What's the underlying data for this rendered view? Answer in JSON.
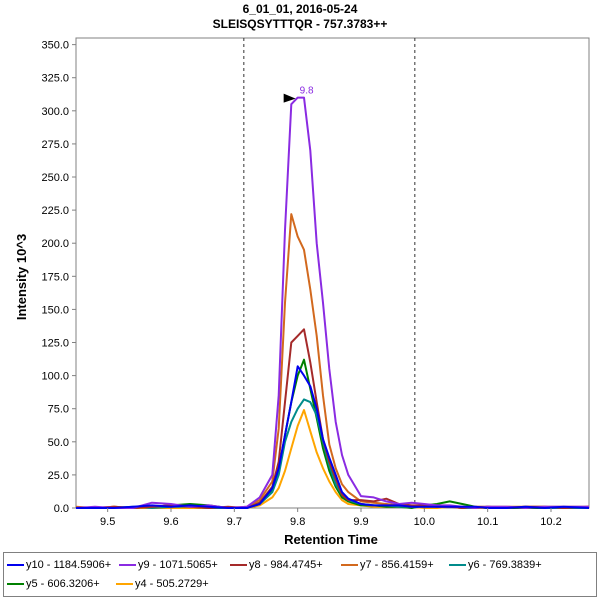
{
  "header": {
    "line1": "6_01_01, 2016-05-24",
    "line2": "SLEISQSYTTTQR - 757.3783++"
  },
  "chart_data": {
    "type": "line",
    "title": "6_01_01, 2016-05-24",
    "subtitle": "SLEISQSYTTTQR - 757.3783++",
    "xlabel": "Retention Time",
    "ylabel": "Intensity 10^3",
    "xlim": [
      9.45,
      10.26
    ],
    "ylim": [
      0,
      355
    ],
    "x_ticks": [
      9.5,
      9.6,
      9.7,
      9.8,
      9.9,
      10.0,
      10.1,
      10.2
    ],
    "x_tick_labels": [
      "9.5",
      "9.6",
      "9.7",
      "9.8",
      "9.9",
      "10.0",
      "10.1",
      "10.2"
    ],
    "y_ticks": [
      0,
      25,
      50,
      75,
      100,
      125,
      150,
      175,
      200,
      225,
      250,
      275,
      300,
      325,
      350
    ],
    "y_tick_labels": [
      "0.0",
      "25.0",
      "50.0",
      "75.0",
      "100.0",
      "125.0",
      "150.0",
      "175.0",
      "200.0",
      "225.0",
      "250.0",
      "275.0",
      "300.0",
      "325.0",
      "350.0"
    ],
    "vlines": [
      9.715,
      9.985
    ],
    "peak_annotation": {
      "x": 9.8,
      "y": 310,
      "label": "9.8"
    },
    "x": [
      9.45,
      9.48,
      9.51,
      9.54,
      9.57,
      9.6,
      9.63,
      9.66,
      9.69,
      9.72,
      9.74,
      9.76,
      9.77,
      9.78,
      9.79,
      9.8,
      9.81,
      9.82,
      9.83,
      9.84,
      9.85,
      9.86,
      9.87,
      9.88,
      9.9,
      9.92,
      9.94,
      9.96,
      9.98,
      10.0,
      10.02,
      10.04,
      10.06,
      10.08,
      10.1,
      10.13,
      10.16,
      10.19,
      10.22,
      10.26
    ],
    "series": [
      {
        "name": "y10 - 1184.5906+",
        "color": "#0000ee",
        "values": [
          0,
          0,
          0,
          1,
          2,
          1,
          2,
          1,
          0,
          0,
          3,
          15,
          30,
          55,
          80,
          107,
          100,
          92,
          75,
          52,
          38,
          25,
          12,
          7,
          3,
          2,
          2,
          2,
          1,
          1,
          1,
          1,
          1,
          1,
          0,
          0,
          1,
          0,
          1,
          0
        ]
      },
      {
        "name": "y9 - 1071.5065+",
        "color": "#8a2be2",
        "values": [
          0,
          1,
          0,
          0,
          4,
          3,
          1,
          2,
          0,
          1,
          8,
          25,
          85,
          210,
          305,
          310,
          310,
          270,
          200,
          155,
          105,
          65,
          40,
          25,
          9,
          8,
          5,
          3,
          4,
          3,
          2,
          2,
          1,
          0,
          1,
          1,
          0,
          1,
          1,
          1
        ]
      },
      {
        "name": "y8 - 984.4745+",
        "color": "#a52a2a",
        "values": [
          0,
          0,
          1,
          0,
          1,
          2,
          1,
          0,
          1,
          0,
          4,
          16,
          35,
          80,
          125,
          130,
          135,
          110,
          80,
          52,
          35,
          22,
          10,
          6,
          6,
          5,
          7,
          3,
          2,
          2,
          1,
          1,
          0,
          1,
          1,
          0,
          1,
          1,
          0,
          1
        ]
      },
      {
        "name": "y7 - 856.4159+",
        "color": "#d2691e",
        "values": [
          1,
          0,
          1,
          0,
          1,
          2,
          1,
          1,
          0,
          1,
          6,
          20,
          60,
          155,
          222,
          205,
          195,
          165,
          130,
          85,
          48,
          30,
          18,
          12,
          5,
          4,
          3,
          2,
          1,
          2,
          1,
          1,
          1,
          0,
          1,
          1,
          1,
          1,
          1,
          1
        ]
      },
      {
        "name": "y6 - 769.3839+",
        "color": "#008b8b",
        "values": [
          0,
          0,
          0,
          1,
          0,
          1,
          1,
          0,
          0,
          0,
          3,
          12,
          25,
          50,
          65,
          75,
          82,
          80,
          70,
          50,
          32,
          18,
          10,
          6,
          3,
          2,
          2,
          1,
          1,
          1,
          1,
          1,
          0,
          0,
          1,
          0,
          1,
          0,
          0,
          0
        ]
      },
      {
        "name": "y5 - 606.3206+",
        "color": "#008000",
        "values": [
          0,
          0,
          0,
          0,
          1,
          2,
          3,
          2,
          0,
          0,
          4,
          14,
          28,
          55,
          80,
          100,
          112,
          90,
          68,
          45,
          28,
          16,
          8,
          5,
          2,
          2,
          1,
          1,
          0,
          2,
          3,
          5,
          3,
          1,
          0,
          0,
          0,
          0,
          0,
          0
        ]
      },
      {
        "name": "y4 - 505.2729+",
        "color": "#ffa500",
        "values": [
          0,
          0,
          1,
          0,
          0,
          0,
          0,
          0,
          0,
          0,
          2,
          8,
          15,
          28,
          45,
          62,
          74,
          58,
          42,
          30,
          20,
          12,
          6,
          3,
          2,
          1,
          1,
          1,
          1,
          0,
          0,
          1,
          0,
          0,
          0,
          0,
          1,
          0,
          0,
          1
        ]
      }
    ]
  }
}
